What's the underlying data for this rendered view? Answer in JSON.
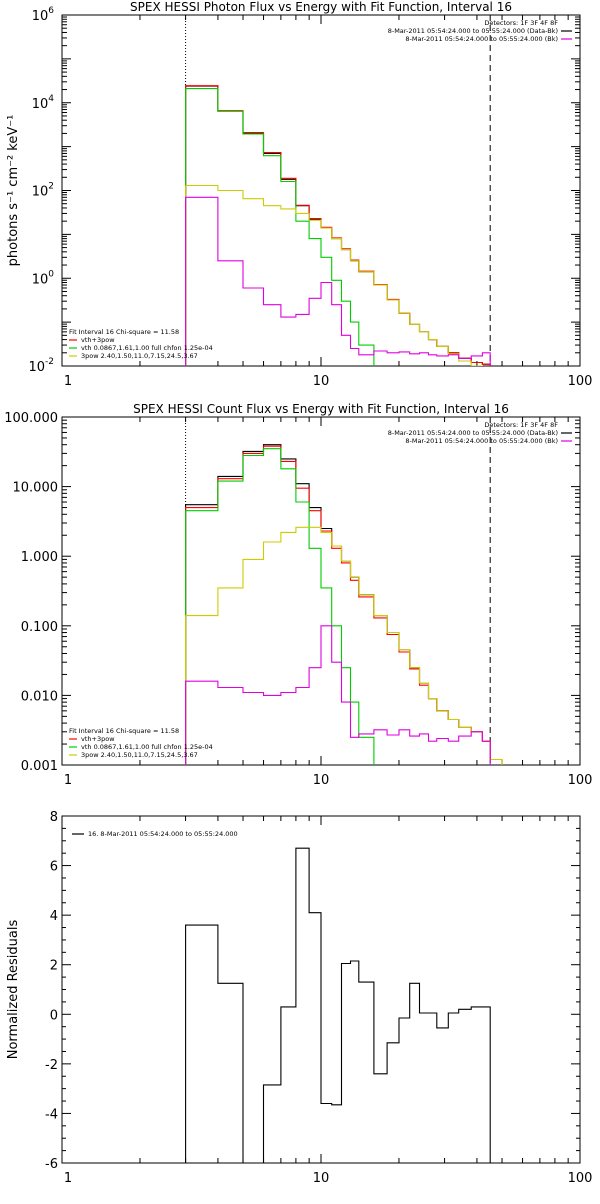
{
  "chart_data": [
    {
      "type": "line",
      "title": "SPEX HESSI Photon Flux vs Energy with Fit Function, Interval 16",
      "ylabel": "photons s⁻¹ cm⁻² keV⁻¹",
      "xscale": "log",
      "yscale": "log",
      "xlim": [
        1,
        100
      ],
      "ylim": [
        0.01,
        1000000
      ],
      "xticks": [
        1,
        10,
        100
      ],
      "yticks": [
        {
          "value": 0.01,
          "base": "10",
          "exp": "-2"
        },
        {
          "value": 1,
          "base": "10",
          "exp": "0"
        },
        {
          "value": 100,
          "base": "10",
          "exp": "2"
        },
        {
          "value": 10000,
          "base": "10",
          "exp": "4"
        },
        {
          "value": 1000000,
          "base": "10",
          "exp": "6"
        }
      ],
      "vlines": [
        {
          "x": 3,
          "style": "dotted"
        },
        {
          "x": 45,
          "style": "dashed"
        }
      ],
      "legend_top": [
        {
          "text": "Detectors: 1F 3F 4F 8F",
          "color": null
        },
        {
          "text": "8-Mar-2011 05:54:24.000 to 05:55:24.000 (Data-Bk)",
          "color": "#000000"
        },
        {
          "text": "8-Mar-2011 05:54:24.000 to 05:55:24.000 (Bk)",
          "color": "#e000e0"
        }
      ],
      "legend_bottom": [
        {
          "text": "Fit Interval 16   Chi-square = 11.58",
          "color": null
        },
        {
          "text": "vth+3pow",
          "color": "#ff0000"
        },
        {
          "text": "vth 0.0867,1.61,1.00  full chfon 1.25e-04",
          "color": "#00cc00"
        },
        {
          "text": "3pow 2.40,1.50,11.0,7.15,24.5,3.67",
          "color": "#cccc00"
        }
      ],
      "x_edges": [
        3,
        4,
        5,
        6,
        7,
        8,
        9,
        10,
        11,
        12,
        13,
        14,
        16,
        18,
        20,
        22,
        24,
        26,
        28,
        31,
        34,
        38,
        42,
        45
      ],
      "series": [
        {
          "color": "#000000",
          "values": [
            24000,
            6500,
            2000,
            700,
            180,
            45,
            22,
            14,
            8,
            4.5,
            2.5,
            1.4,
            0.7,
            0.32,
            0.16,
            0.09,
            0.06,
            0.04,
            0.028,
            0.02,
            0.015,
            0.012,
            0.011
          ]
        },
        {
          "color": "#ff0000",
          "values": [
            24500,
            6600,
            2100,
            730,
            190,
            46,
            23,
            14.5,
            8.3,
            4.7,
            2.6,
            1.45,
            0.72,
            0.33,
            0.16,
            0.09,
            0.06,
            0.04,
            0.028,
            0.02,
            0.015,
            0.012,
            0.011
          ]
        },
        {
          "color": "#00cc00",
          "values": [
            21000,
            6400,
            1950,
            620,
            160,
            20,
            8,
            3,
            0.9,
            0.3,
            0.1,
            0.03,
            0.009,
            0.009,
            0.009,
            0.009,
            0.009,
            0.009,
            0.009,
            0.009,
            0.009,
            0.009,
            0.009
          ]
        },
        {
          "color": "#cccc00",
          "values": [
            130,
            100,
            65,
            45,
            38,
            30,
            21,
            14,
            8,
            4.5,
            2.5,
            1.4,
            0.7,
            0.32,
            0.16,
            0.09,
            0.06,
            0.04,
            0.028,
            0.019,
            0.013,
            0.01,
            0.009
          ]
        },
        {
          "color": "#e000e0",
          "values": [
            70,
            2.5,
            0.6,
            0.25,
            0.13,
            0.15,
            0.35,
            0.8,
            0.25,
            0.05,
            0.025,
            0.018,
            0.022,
            0.02,
            0.021,
            0.019,
            0.02,
            0.018,
            0.017,
            0.018,
            0.015,
            0.017,
            0.02
          ]
        }
      ]
    },
    {
      "type": "line",
      "title": "SPEX HESSI Count Flux vs Energy with Fit Function, Interval 16",
      "ylabel": "",
      "xscale": "log",
      "yscale": "log",
      "xlim": [
        1,
        100
      ],
      "ylim": [
        0.001,
        100
      ],
      "xticks": [
        1,
        10,
        100
      ],
      "yticks": [
        {
          "value": 0.001,
          "label": "0.001"
        },
        {
          "value": 0.01,
          "label": "0.010"
        },
        {
          "value": 0.1,
          "label": "0.100"
        },
        {
          "value": 1,
          "label": "1.000"
        },
        {
          "value": 10,
          "label": "10.000"
        },
        {
          "value": 100,
          "label": "100.000"
        }
      ],
      "vlines": [
        {
          "x": 3,
          "style": "dotted"
        },
        {
          "x": 45,
          "style": "dashed"
        }
      ],
      "legend_top": [
        {
          "text": "Detectors: 1F 3F 4F 8F",
          "color": null
        },
        {
          "text": "8-Mar-2011 05:54:24.000 to 05:55:24.000 (Data-Bk)",
          "color": "#000000"
        },
        {
          "text": "8-Mar-2011 05:54:24.000 to 05:55:24.000 (Bk)",
          "color": "#e000e0"
        }
      ],
      "legend_bottom": [
        {
          "text": "Fit Interval 16   Chi-square = 11.58",
          "color": null
        },
        {
          "text": "vth+3pow",
          "color": "#ff0000"
        },
        {
          "text": "vth 0.0867,1.61,1.00  full chfon 1.25e-04",
          "color": "#00cc00"
        },
        {
          "text": "3pow 2.40,1.50,11.0,7.15,24.5,3.67",
          "color": "#cccc00"
        }
      ],
      "x_edges": [
        3,
        4,
        5,
        6,
        7,
        8,
        9,
        10,
        11,
        12,
        13,
        14,
        16,
        18,
        20,
        22,
        24,
        26,
        28,
        31,
        34,
        38,
        42,
        45,
        50
      ],
      "series": [
        {
          "color": "#000000",
          "values": [
            5.5,
            14,
            32,
            40,
            25,
            11,
            5,
            2.5,
            1.4,
            0.85,
            0.5,
            0.28,
            0.14,
            0.08,
            0.045,
            0.025,
            0.015,
            0.009,
            0.006,
            0.0045,
            0.0035,
            0.003,
            0.0022,
            0.0012
          ]
        },
        {
          "color": "#ff0000",
          "values": [
            5,
            13,
            30,
            38,
            23,
            9.5,
            4.5,
            2.3,
            1.3,
            0.8,
            0.45,
            0.26,
            0.13,
            0.075,
            0.042,
            0.024,
            0.014,
            0.009,
            0.006,
            0.0045,
            0.0035,
            0.003,
            0.0022,
            0.0012
          ]
        },
        {
          "color": "#00cc00",
          "values": [
            4.5,
            12,
            28,
            35,
            18,
            6,
            1.3,
            0.35,
            0.1,
            0.025,
            0.008,
            0.0025,
            0.0009,
            0.0009,
            0.0009,
            0.0009,
            0.0009,
            0.0009,
            0.0009,
            0.0009,
            0.0009,
            0.0009,
            0.0009,
            0.0009
          ]
        },
        {
          "color": "#cccc00",
          "values": [
            0.14,
            0.35,
            0.9,
            1.6,
            2.2,
            2.6,
            2.6,
            2.2,
            1.4,
            0.85,
            0.5,
            0.28,
            0.14,
            0.08,
            0.045,
            0.025,
            0.015,
            0.009,
            0.006,
            0.0045,
            0.0035,
            0.003,
            0.0022,
            0.0012
          ]
        },
        {
          "color": "#e000e0",
          "values": [
            0.016,
            0.013,
            0.011,
            0.01,
            0.011,
            0.013,
            0.025,
            0.1,
            0.03,
            0.008,
            0.0025,
            0.0028,
            0.0032,
            0.0027,
            0.0032,
            0.0026,
            0.0028,
            0.0022,
            0.0024,
            0.0022,
            0.0026,
            0.003,
            0.0022,
            0.0009
          ]
        }
      ]
    },
    {
      "type": "line",
      "title": "",
      "ylabel": "Normalized Residuals",
      "xscale": "log",
      "yscale": "linear",
      "xlim": [
        1,
        100
      ],
      "ylim": [
        -6,
        8
      ],
      "xticks": [
        1,
        10,
        100
      ],
      "yticks": [
        {
          "value": -6,
          "label": "-6"
        },
        {
          "value": -4,
          "label": "-4"
        },
        {
          "value": -2,
          "label": "-2"
        },
        {
          "value": 0,
          "label": "0"
        },
        {
          "value": 2,
          "label": "2"
        },
        {
          "value": 4,
          "label": "4"
        },
        {
          "value": 6,
          "label": "6"
        },
        {
          "value": 8,
          "label": "8"
        }
      ],
      "legend_top": [
        {
          "text": "16.  8-Mar-2011 05:54:24.000 to 05:55:24.000",
          "color": "#000000"
        }
      ],
      "x_edges": [
        3,
        4,
        5,
        6,
        7,
        8,
        9,
        10,
        11,
        12,
        13,
        14,
        16,
        18,
        20,
        22,
        24,
        26,
        28,
        31,
        34,
        38,
        42,
        45
      ],
      "series": [
        {
          "color": "#000000",
          "values": [
            3.6,
            1.25,
            -6.1,
            -2.85,
            0.3,
            6.7,
            4.1,
            -3.6,
            -3.65,
            2.05,
            2.15,
            1.3,
            -2.4,
            -1.15,
            -0.15,
            1.25,
            0.05,
            0.05,
            -0.55,
            0.05,
            0.2,
            0.3,
            0.3
          ]
        }
      ]
    }
  ]
}
